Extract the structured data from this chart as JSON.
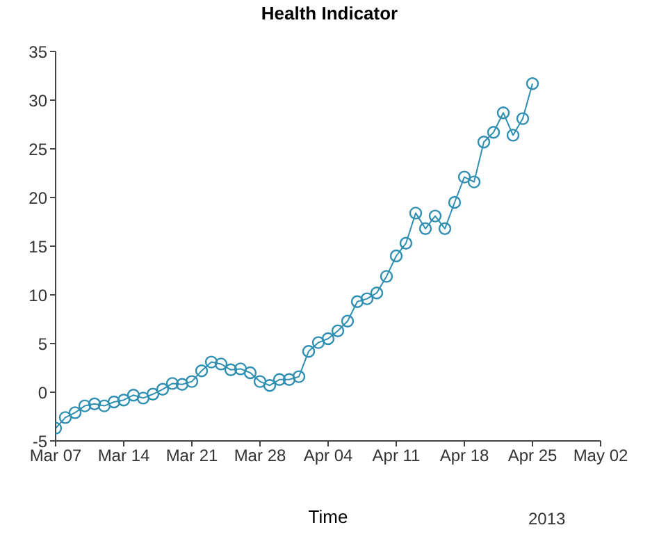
{
  "chart_data": {
    "type": "line",
    "title": "Health Indicator",
    "xlabel": "Time",
    "annotations": [
      "2013"
    ],
    "x": [
      "2013-03-07",
      "2013-03-08",
      "2013-03-09",
      "2013-03-10",
      "2013-03-11",
      "2013-03-12",
      "2013-03-13",
      "2013-03-14",
      "2013-03-15",
      "2013-03-16",
      "2013-03-17",
      "2013-03-18",
      "2013-03-19",
      "2013-03-20",
      "2013-03-21",
      "2013-03-22",
      "2013-03-23",
      "2013-03-24",
      "2013-03-25",
      "2013-03-26",
      "2013-03-27",
      "2013-03-28",
      "2013-03-29",
      "2013-03-30",
      "2013-03-31",
      "2013-04-01",
      "2013-04-02",
      "2013-04-03",
      "2013-04-04",
      "2013-04-05",
      "2013-04-06",
      "2013-04-07",
      "2013-04-08",
      "2013-04-09",
      "2013-04-10",
      "2013-04-11",
      "2013-04-12",
      "2013-04-13",
      "2013-04-14",
      "2013-04-15",
      "2013-04-16",
      "2013-04-17",
      "2013-04-18",
      "2013-04-19",
      "2013-04-20",
      "2013-04-21",
      "2013-04-22",
      "2013-04-23",
      "2013-04-24",
      "2013-04-25"
    ],
    "series": [
      {
        "color": "#2f8fb3",
        "values": [
          -3.7,
          -2.6,
          -2.1,
          -1.4,
          -1.2,
          -1.4,
          -1.0,
          -0.8,
          -0.3,
          -0.6,
          -0.2,
          0.3,
          0.9,
          0.8,
          1.1,
          2.2,
          3.1,
          2.9,
          2.3,
          2.4,
          2.0,
          1.1,
          0.7,
          1.3,
          1.3,
          1.6,
          4.2,
          5.1,
          5.5,
          6.3,
          7.3,
          9.3,
          9.6,
          10.2,
          11.9,
          14.0,
          15.3,
          18.4,
          16.8,
          18.1,
          16.8,
          19.5,
          22.1,
          21.6,
          25.7,
          26.7,
          28.7,
          26.4,
          28.1,
          31.7
        ]
      }
    ],
    "xlim": [
      "2013-03-07",
      "2013-05-02"
    ],
    "xticks": [
      {
        "value": "2013-03-07",
        "label": "Mar 07"
      },
      {
        "value": "2013-03-14",
        "label": "Mar 14"
      },
      {
        "value": "2013-03-21",
        "label": "Mar 21"
      },
      {
        "value": "2013-03-28",
        "label": "Mar 28"
      },
      {
        "value": "2013-04-04",
        "label": "Apr 04"
      },
      {
        "value": "2013-04-11",
        "label": "Apr 11"
      },
      {
        "value": "2013-04-18",
        "label": "Apr 18"
      },
      {
        "value": "2013-04-25",
        "label": "Apr 25"
      },
      {
        "value": "2013-05-02",
        "label": "May 02"
      }
    ],
    "ylim": [
      -5,
      35
    ],
    "yticks": [
      -5,
      0,
      5,
      10,
      15,
      20,
      25,
      30,
      35
    ],
    "grid": false,
    "legend": false,
    "marker": "circle",
    "line_style": "solid"
  }
}
